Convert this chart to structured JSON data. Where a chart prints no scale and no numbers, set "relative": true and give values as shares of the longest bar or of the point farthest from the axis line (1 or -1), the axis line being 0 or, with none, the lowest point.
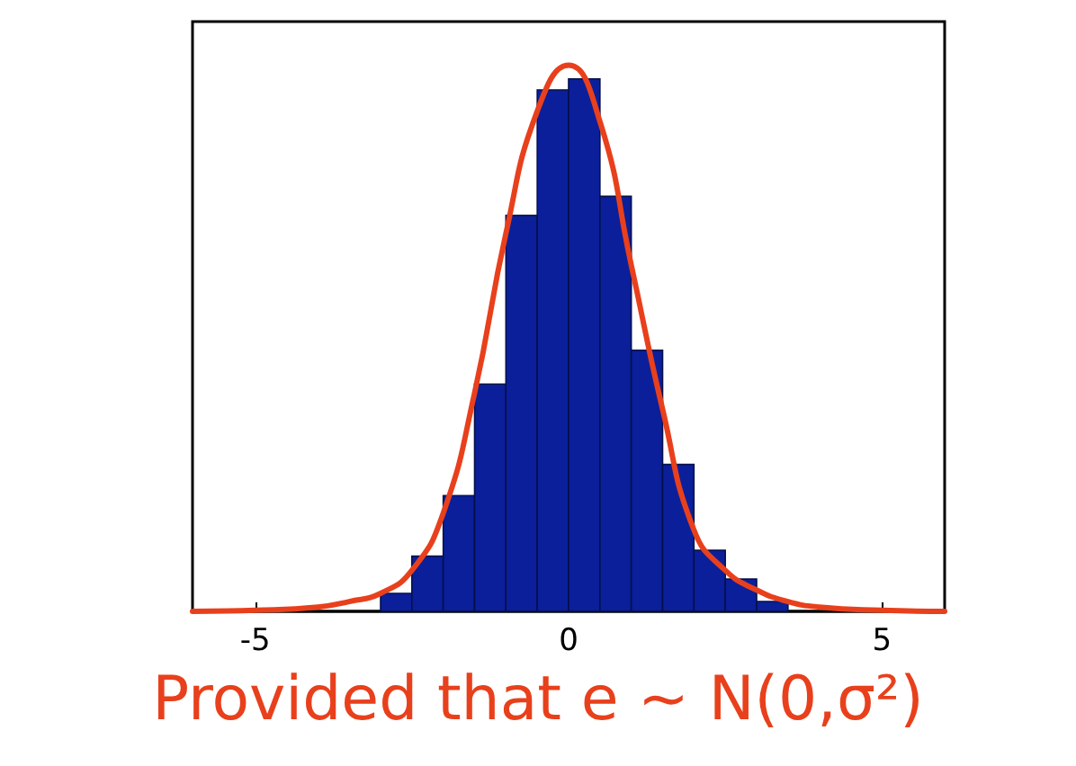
{
  "chart_data": {
    "type": "histogram",
    "relative": true,
    "xlim": [
      -6,
      6
    ],
    "xticks": [
      -5,
      0,
      5
    ],
    "grid": false,
    "series": [
      {
        "color": "#0b1f9b",
        "bins": [
          -3,
          -2.5,
          -2,
          -1.5,
          -1,
          -0.5,
          0,
          0.5,
          1,
          1.5,
          2,
          2.5,
          3,
          3.5
        ],
        "values": [
          0.033,
          0.101,
          0.212,
          0.416,
          0.725,
          0.955,
          0.975,
          0.76,
          0.478,
          0.269,
          0.112,
          0.059,
          0.018
        ]
      },
      {
        "type": "line",
        "color": "#e8401c",
        "x": [
          -6,
          -5,
          -4,
          -3.5,
          -3,
          -2.5,
          -2,
          -1.5,
          -1,
          -0.5,
          0,
          0.5,
          1,
          1.5,
          2,
          2.5,
          3,
          3.5,
          4,
          5,
          6
        ],
        "values": [
          0,
          0.002,
          0.008,
          0.018,
          0.033,
          0.075,
          0.18,
          0.4,
          0.692,
          0.916,
          1,
          0.897,
          0.634,
          0.37,
          0.149,
          0.075,
          0.039,
          0.018,
          0.008,
          0.002,
          0
        ]
      }
    ],
    "annotations": [
      "Provided that e ~ N(0,σ²)"
    ]
  }
}
